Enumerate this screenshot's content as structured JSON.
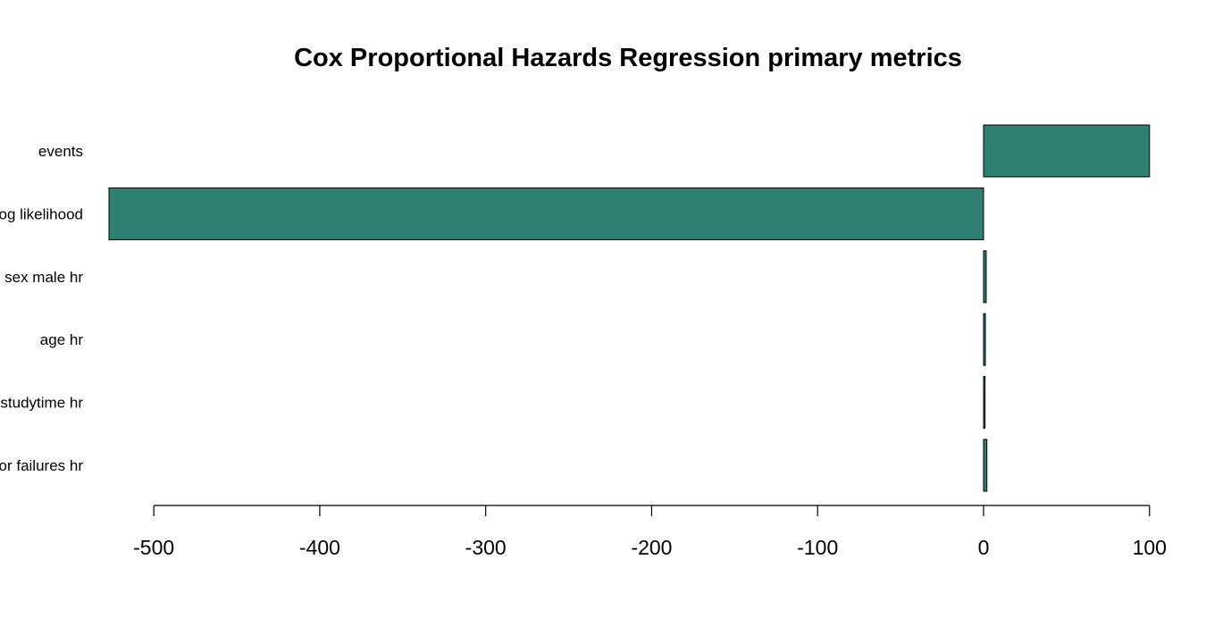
{
  "chart_data": {
    "type": "bar",
    "orientation": "horizontal",
    "title": "Cox Proportional Hazards Regression primary metrics",
    "xlabel": "",
    "ylabel": "",
    "categories": [
      "events",
      "log likelihood",
      "sex male hr",
      "age hr",
      "studytime hr",
      "prior failures hr"
    ],
    "visible_category_text": [
      "events",
      "og likelihood",
      "sex male hr",
      "age hr",
      "studytime hr",
      "or failures hr"
    ],
    "values": [
      100,
      -527,
      1.6,
      1.1,
      0.9,
      2.0
    ],
    "xlim": [
      -527,
      100
    ],
    "xticks": [
      -500,
      -400,
      -300,
      -200,
      -100,
      0,
      100
    ],
    "xtick_labels": [
      "-500",
      "-400",
      "-300",
      "-200",
      "-100",
      "0",
      "100"
    ],
    "bar_color": "#2e8070",
    "bar_border_color": "#000000",
    "grid": false,
    "legend": "none"
  }
}
